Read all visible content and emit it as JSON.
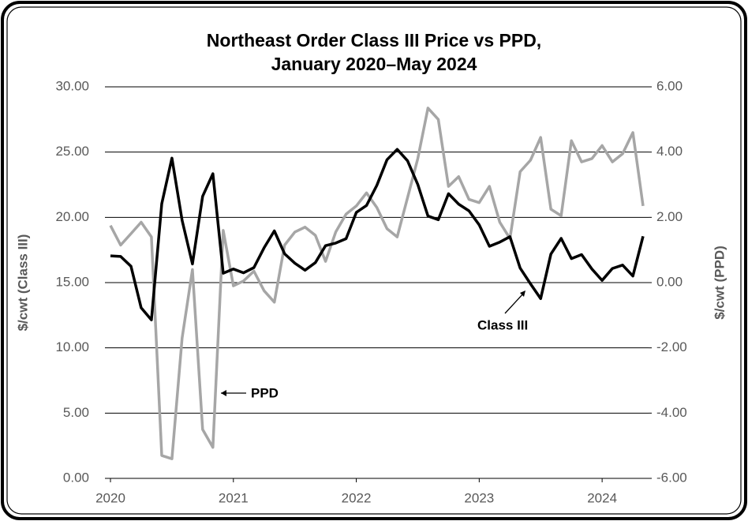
{
  "chart_data": {
    "type": "line",
    "title": [
      "Northeast Order Class III Price vs PPD,",
      "January 2020–May 2024"
    ],
    "y_label": "$/cwt (Class III)",
    "y2_label": "$/cwt (PPD)",
    "annotations": [
      "PPD",
      "Class III"
    ],
    "x": [
      2020,
      2020.083,
      2020.167,
      2020.25,
      2020.333,
      2020.417,
      2020.5,
      2020.583,
      2020.667,
      2020.75,
      2020.833,
      2020.917,
      2021,
      2021.083,
      2021.167,
      2021.25,
      2021.333,
      2021.417,
      2021.5,
      2021.583,
      2021.667,
      2021.75,
      2021.833,
      2021.917,
      2022,
      2022.083,
      2022.167,
      2022.25,
      2022.333,
      2022.417,
      2022.5,
      2022.583,
      2022.667,
      2022.75,
      2022.833,
      2022.917,
      2023,
      2023.083,
      2023.167,
      2023.25,
      2023.333,
      2023.417,
      2023.5,
      2023.583,
      2023.667,
      2023.75,
      2023.833,
      2023.917,
      2024,
      2024.083,
      2024.167,
      2024.25,
      2024.333
    ],
    "xlim": [
      2020,
      2024.333
    ],
    "xticks": [
      2020,
      2021,
      2022,
      2023,
      2024
    ],
    "ylim": [
      0,
      30
    ],
    "yticks": [
      {
        "value": 0,
        "label": "0.00"
      },
      {
        "value": 5,
        "label": "5.00"
      },
      {
        "value": 10,
        "label": "10.00"
      },
      {
        "value": 15,
        "label": "15.00"
      },
      {
        "value": 20,
        "label": "20.00"
      },
      {
        "value": 25,
        "label": "25.00"
      },
      {
        "value": 30,
        "label": "30.00"
      }
    ],
    "y2lim": [
      -6,
      6
    ],
    "y2ticks": [
      {
        "value": -6,
        "label": "-6.00"
      },
      {
        "value": -4,
        "label": "-4.00"
      },
      {
        "value": -2,
        "label": "-2.00"
      },
      {
        "value": 0,
        "label": "0.00"
      },
      {
        "value": 2,
        "label": "2.00"
      },
      {
        "value": 4,
        "label": "4.00"
      },
      {
        "value": 6,
        "label": "6.00"
      }
    ],
    "grid": true,
    "series": [
      {
        "name": "Class III",
        "color": "#000000",
        "values": [
          17.05,
          17.0,
          16.25,
          13.07,
          12.14,
          21.04,
          24.54,
          19.77,
          16.43,
          21.61,
          23.34,
          15.72,
          16.04,
          15.75,
          16.15,
          17.67,
          18.96,
          17.21,
          16.49,
          15.95,
          16.53,
          17.83,
          18.03,
          18.36,
          20.38,
          20.91,
          22.45,
          24.42,
          25.21,
          24.33,
          22.52,
          20.1,
          19.82,
          21.81,
          21.01,
          20.5,
          19.43,
          17.78,
          18.1,
          18.52,
          16.11,
          14.91,
          13.77,
          17.19,
          18.39,
          16.84,
          17.15,
          16.04,
          15.17,
          16.08,
          16.34,
          15.5,
          18.55
        ]
      },
      {
        "name": "PPD",
        "color": "#a6a6a6",
        "axis": "y2",
        "values": [
          1.75,
          1.15,
          1.5,
          1.85,
          1.4,
          -5.3,
          -5.4,
          -1.7,
          0.4,
          -4.5,
          -5.05,
          1.6,
          -0.1,
          0.05,
          0.35,
          -0.25,
          -0.6,
          1.15,
          1.55,
          1.7,
          1.45,
          0.65,
          1.55,
          2.1,
          2.35,
          2.75,
          2.3,
          1.65,
          1.4,
          2.6,
          3.8,
          5.35,
          5.0,
          2.95,
          3.25,
          2.55,
          2.45,
          2.95,
          1.85,
          1.35,
          3.4,
          3.75,
          4.45,
          2.25,
          2.05,
          4.35,
          3.7,
          3.8,
          4.2,
          3.7,
          3.95,
          4.6,
          2.35
        ]
      }
    ]
  }
}
